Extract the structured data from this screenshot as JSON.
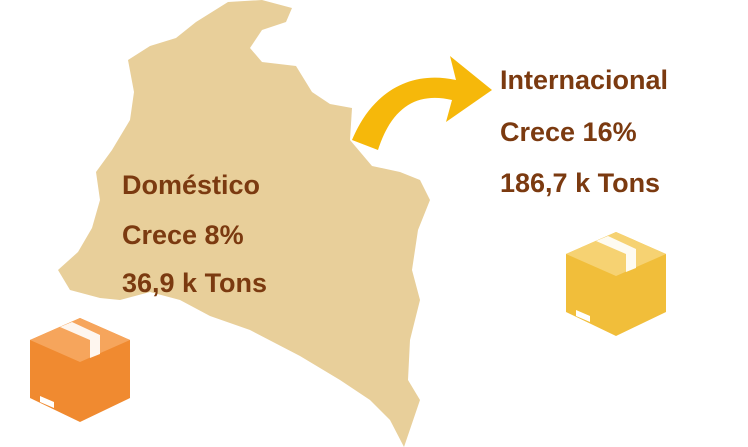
{
  "domestic": {
    "label": "Doméstico",
    "growth": "Crece 8%",
    "volume": "36,9 k Tons"
  },
  "international": {
    "label": "Internacional",
    "growth": "Crece 16%",
    "volume": "186,7 k Tons"
  }
}
